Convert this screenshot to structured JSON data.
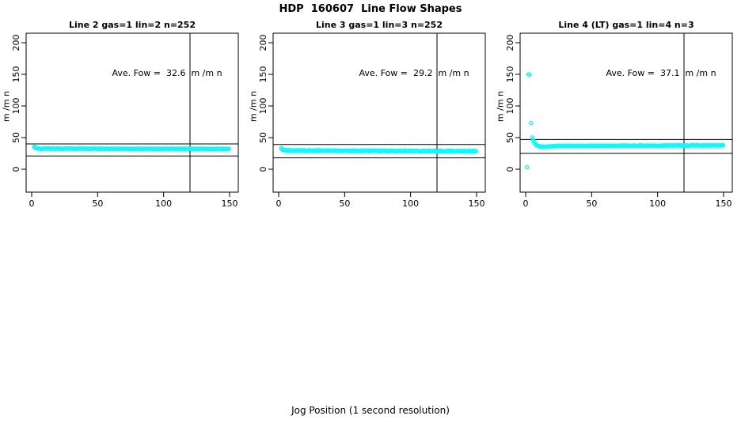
{
  "figure": {
    "title": "HDP  160607  Line Flow Shapes",
    "xlabel": "Jog Position (1 second resolution)",
    "point_color": "#00FFFF",
    "axis_color": "#000000",
    "background": "#FFFFFF"
  },
  "chart_data": [
    {
      "type": "scatter",
      "title": "Line 2 gas=1 lin=2 n=252",
      "ylabel": "m /m n",
      "annotation": "Ave. Fow =  32.6  m /m n",
      "ave_flow_ml_min": 32.6,
      "n_points": 252,
      "xticks": [
        0,
        50,
        100,
        150
      ],
      "yticks": [
        0,
        50,
        100,
        150,
        200
      ],
      "xlim": [
        -4,
        157
      ],
      "ylim": [
        -36,
        215
      ],
      "hlines": [
        40,
        21
      ],
      "vline": 120,
      "point_step": 0.59,
      "jitter": 0.35,
      "series_keypoints": [
        [
          2,
          36
        ],
        [
          3,
          33.5
        ],
        [
          4,
          32.6
        ],
        [
          60,
          32.4
        ],
        [
          150,
          32.2
        ]
      ],
      "outliers": []
    },
    {
      "type": "scatter",
      "title": "Line 3 gas=1 lin=3 n=252",
      "ylabel": "m /m n",
      "annotation": "Ave. Fow =  29.2  m /m n",
      "ave_flow_ml_min": 29.2,
      "n_points": 252,
      "xticks": [
        0,
        50,
        100,
        150
      ],
      "yticks": [
        0,
        50,
        100,
        150,
        200
      ],
      "xlim": [
        -4,
        157
      ],
      "ylim": [
        -36,
        215
      ],
      "hlines": [
        39,
        18
      ],
      "vline": 120,
      "point_step": 0.59,
      "jitter": 0.8,
      "series_keypoints": [
        [
          2,
          33
        ],
        [
          3,
          31
        ],
        [
          5,
          29.8
        ],
        [
          20,
          29.4
        ],
        [
          60,
          29.0
        ],
        [
          110,
          28.7
        ],
        [
          150,
          28.5
        ]
      ],
      "outliers": []
    },
    {
      "type": "scatter",
      "title": "Line 4 (LT) gas=1 lin=4 n=3",
      "ylabel": "m /m n",
      "annotation": "Ave. Fow =  37.1  m /m n",
      "ave_flow_ml_min": 37.1,
      "n_points": 3,
      "xticks": [
        0,
        50,
        100,
        150
      ],
      "yticks": [
        0,
        50,
        100,
        150,
        200
      ],
      "xlim": [
        -4,
        157
      ],
      "ylim": [
        -36,
        215
      ],
      "hlines": [
        47,
        25
      ],
      "vline": 120,
      "point_step": 0.6,
      "jitter": 0.35,
      "series_keypoints": [
        [
          5,
          50
        ],
        [
          6,
          45
        ],
        [
          7,
          41
        ],
        [
          8,
          38.5
        ],
        [
          10,
          36.2
        ],
        [
          13,
          35.3
        ],
        [
          18,
          36
        ],
        [
          25,
          36.9
        ],
        [
          60,
          37.2
        ],
        [
          150,
          37.6
        ]
      ],
      "outliers": [
        [
          1,
          3
        ],
        [
          2.3,
          150
        ],
        [
          2.9,
          149.5
        ],
        [
          4,
          73
        ]
      ]
    }
  ]
}
